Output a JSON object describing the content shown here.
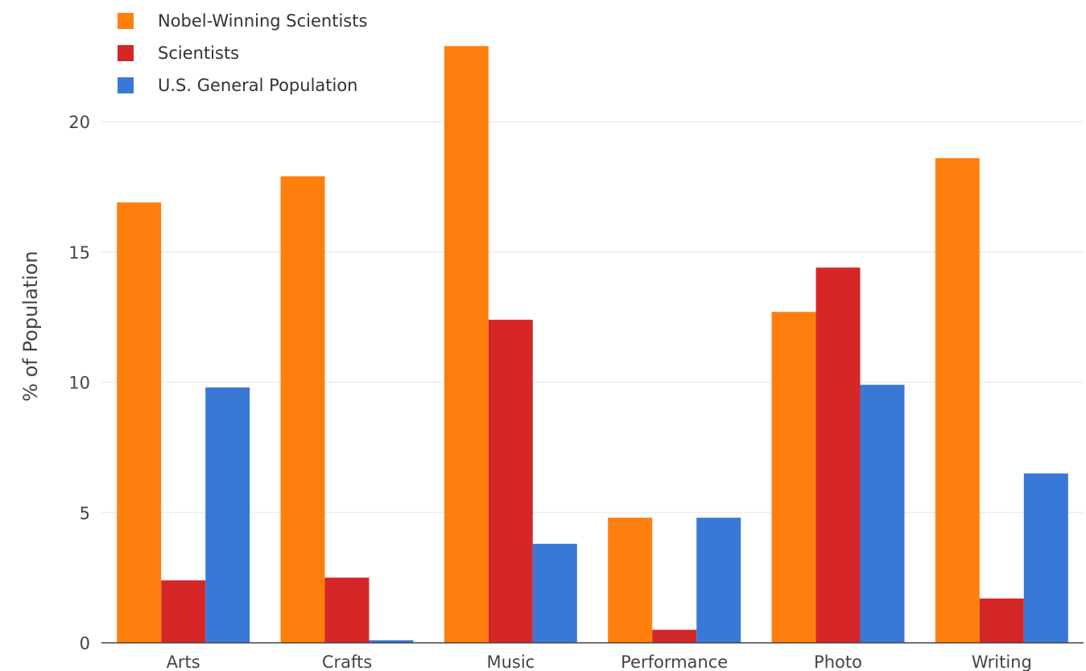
{
  "chart_data": {
    "type": "bar",
    "categories": [
      "Arts",
      "Crafts",
      "Music",
      "Performance",
      "Photo",
      "Writing"
    ],
    "series": [
      {
        "name": "Nobel-Winning Scientists",
        "color": "#ff7f0e",
        "values": [
          16.9,
          17.9,
          22.9,
          4.8,
          12.7,
          18.6
        ]
      },
      {
        "name": "Scientists",
        "color": "#d62728",
        "values": [
          2.4,
          2.5,
          12.4,
          0.5,
          14.4,
          1.7
        ]
      },
      {
        "name": "U.S. General Population",
        "color": "#3a78d8",
        "values": [
          9.8,
          0.1,
          3.8,
          4.8,
          9.9,
          6.5
        ]
      }
    ],
    "ylabel": "% of Population",
    "yticks": [
      "0",
      "5",
      "10",
      "15",
      "20"
    ],
    "ylim": [
      0,
      23.5
    ],
    "grid": true,
    "legend_position": "top-left"
  }
}
